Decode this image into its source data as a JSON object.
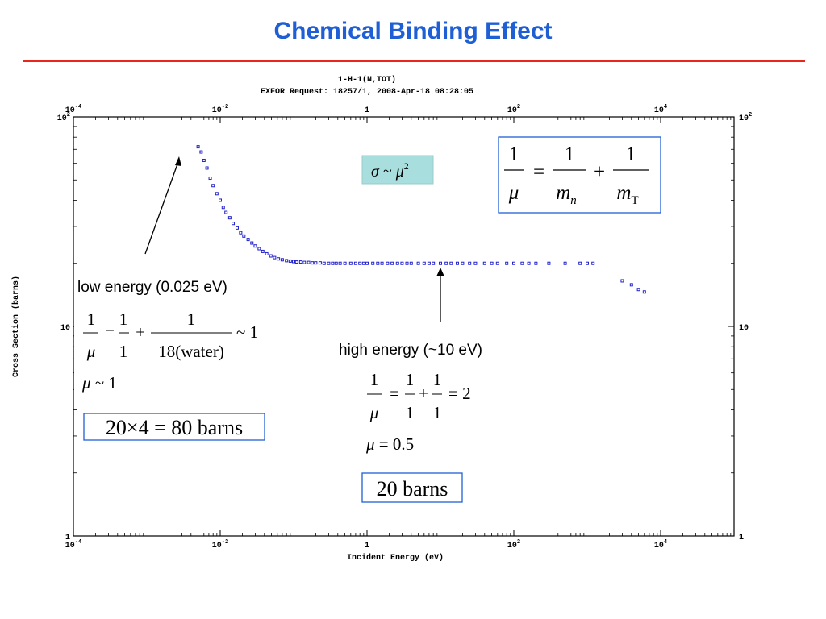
{
  "slide": {
    "title": "Chemical Binding Effect",
    "accent_title": "#1f5fd6",
    "accent_rule": "#e8261c"
  },
  "chart_data": {
    "type": "scatter",
    "title_line1": "1-H-1(N,TOT)",
    "title_line2": "EXFOR Request: 18257/1, 2008-Apr-18 08:28:05",
    "xlabel": "Incident Energy (eV)",
    "ylabel": "Cross Section (barns)",
    "xscale": "log",
    "yscale": "log",
    "xlim": [
      0.0001,
      100000
    ],
    "ylim": [
      1,
      100
    ],
    "x_ticks": [
      {
        "v": 0.0001,
        "label": "10",
        "exp": "-4"
      },
      {
        "v": 0.01,
        "label": "10",
        "exp": "-2"
      },
      {
        "v": 1,
        "label": "1",
        "exp": ""
      },
      {
        "v": 100,
        "label": "10",
        "exp": "2"
      },
      {
        "v": 10000,
        "label": "10",
        "exp": "4"
      }
    ],
    "y_ticks": [
      {
        "v": 1,
        "label": "1",
        "exp": ""
      },
      {
        "v": 10,
        "label": "10",
        "exp": ""
      },
      {
        "v": 100,
        "label": "10",
        "exp": "2"
      }
    ],
    "marker_color": "#2222cc",
    "series": [
      {
        "x": [
          0.005,
          0.0055,
          0.006,
          0.0066,
          0.0073,
          0.008,
          0.009,
          0.01,
          0.011,
          0.012,
          0.0135,
          0.015,
          0.017,
          0.019,
          0.021,
          0.024,
          0.027,
          0.03,
          0.034,
          0.038,
          0.043,
          0.049,
          0.055,
          0.062,
          0.07,
          0.08,
          0.09,
          0.1,
          0.11,
          0.125,
          0.14,
          0.16,
          0.18,
          0.2,
          0.23,
          0.26,
          0.3,
          0.34,
          0.38,
          0.43,
          0.5,
          0.6,
          0.7,
          0.8,
          0.9,
          1.0,
          1.2,
          1.4,
          1.6,
          1.9,
          2.2,
          2.6,
          3,
          3.5,
          4,
          5,
          6,
          7,
          8,
          10,
          12,
          14,
          17,
          20,
          25,
          30,
          40,
          50,
          60,
          80,
          100,
          130,
          160,
          200,
          300,
          500,
          800,
          1000,
          1200,
          3000,
          4000,
          5000,
          6000
        ],
        "y": [
          72,
          68,
          62,
          57,
          51,
          47,
          43,
          40,
          37,
          35,
          33,
          31,
          29.5,
          28,
          27,
          26,
          25,
          24.2,
          23.5,
          22.8,
          22.2,
          21.7,
          21.3,
          21.0,
          20.8,
          20.6,
          20.5,
          20.4,
          20.3,
          20.3,
          20.2,
          20.2,
          20.1,
          20.1,
          20.1,
          20.0,
          20.0,
          20.0,
          20.0,
          20.0,
          20.0,
          20.0,
          20.0,
          20.0,
          20.0,
          20.0,
          20.0,
          20.0,
          20.0,
          20.0,
          20.0,
          20.0,
          20.0,
          20.0,
          20.0,
          20.0,
          20.0,
          20.0,
          20.0,
          20.0,
          20.0,
          20.0,
          20.0,
          20.0,
          20.0,
          20.0,
          20.0,
          20.0,
          20.0,
          20.0,
          20.0,
          20.0,
          20.0,
          20.0,
          20.0,
          20.0,
          20.0,
          20.0,
          20.0,
          16.5,
          15.8,
          15.0,
          14.6
        ]
      }
    ]
  },
  "annotations": {
    "sigma_box": {
      "sigma": "σ",
      "tilde": " ~ ",
      "mu": "μ",
      "exp": "2"
    },
    "reduced_mass_box": {
      "one": "1",
      "eq": "=",
      "plus": "+",
      "mu": "μ",
      "m": "m",
      "n": "n",
      "T": "T"
    },
    "low_energy": {
      "label": "low energy (0.025 eV)",
      "eq_one": "1",
      "eq_eq": "=",
      "eq_plus": "+",
      "eq_mu": "μ",
      "eq_water": "18(water)",
      "eq_approx": "~ 1",
      "mu_line_mu": "μ",
      "mu_line_rest": " ~ 1",
      "barns": "20×4 = 80 barns"
    },
    "high_energy": {
      "label": "high energy (~10 eV)",
      "eq_one": "1",
      "eq_eq": "=",
      "eq_plus": "+",
      "eq_mu": "μ",
      "eq_result": "= 2",
      "mu_line_mu": "μ",
      "mu_line_rest": " = 0.5",
      "barns": "20 barns"
    },
    "sigma_box_color": "#a8dedd",
    "box_border_color": "#1f5fd6"
  }
}
